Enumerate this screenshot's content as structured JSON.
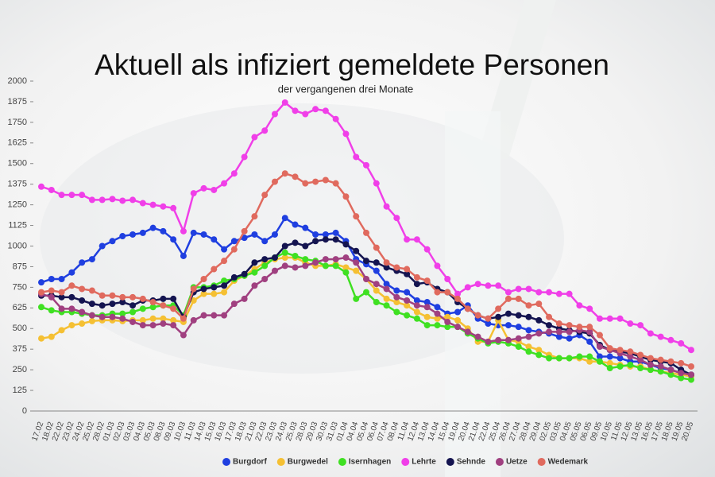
{
  "chart_data": {
    "type": "line",
    "title": "Aktuell als infiziert gemeldete Personen",
    "subtitle": "der vergangenen drei Monate",
    "categories": [
      "17.02",
      "18.02",
      "22.02",
      "23.02",
      "24.02",
      "25.02",
      "28.02",
      "01.03",
      "02.03",
      "03.03",
      "04.03",
      "05.03",
      "08.03",
      "09.03",
      "10.03",
      "11.03",
      "14.03",
      "15.03",
      "16.03",
      "17.03",
      "18.03",
      "21.03",
      "22.03",
      "23.03",
      "24.03",
      "25.03",
      "28.03",
      "29.03",
      "30.03",
      "31.03",
      "01.04",
      "04.04",
      "05.04",
      "06.04",
      "07.04",
      "08.04",
      "11.04",
      "12.04",
      "13.04",
      "14.04",
      "15.04",
      "19.04",
      "20.04",
      "21.04",
      "22.04",
      "25.04",
      "26.04",
      "27.04",
      "28.04",
      "29.04",
      "02.05",
      "03.05",
      "04.05",
      "05.05",
      "06.05",
      "09.05",
      "10.05",
      "11.05",
      "12.05",
      "13.05",
      "16.05",
      "17.05",
      "18.05",
      "19.05",
      "20.05"
    ],
    "series": [
      {
        "name": "Burgdorf",
        "color": "#1f3fe0",
        "values": [
          780,
          800,
          800,
          840,
          900,
          920,
          1000,
          1030,
          1060,
          1070,
          1080,
          1110,
          1090,
          1040,
          940,
          1080,
          1070,
          1040,
          980,
          1030,
          1050,
          1070,
          1030,
          1070,
          1170,
          1130,
          1110,
          1070,
          1070,
          1080,
          1030,
          920,
          890,
          850,
          770,
          730,
          720,
          670,
          660,
          630,
          590,
          600,
          640,
          560,
          530,
          520,
          520,
          510,
          490,
          480,
          470,
          450,
          440,
          460,
          420,
          330,
          330,
          320,
          300,
          300,
          280,
          260,
          250,
          230,
          220
        ]
      },
      {
        "name": "Burgwedel",
        "color": "#f5c033",
        "values": [
          440,
          450,
          490,
          520,
          530,
          545,
          550,
          550,
          545,
          550,
          550,
          560,
          560,
          550,
          540,
          670,
          710,
          710,
          720,
          790,
          820,
          860,
          900,
          920,
          930,
          930,
          900,
          880,
          880,
          890,
          870,
          850,
          800,
          730,
          680,
          660,
          640,
          600,
          570,
          560,
          570,
          550,
          500,
          420,
          420,
          550,
          430,
          420,
          390,
          370,
          340,
          320,
          320,
          320,
          300,
          300,
          290,
          280,
          270,
          270,
          250,
          240,
          230,
          220,
          210
        ]
      },
      {
        "name": "Isernhagen",
        "color": "#3fe022",
        "values": [
          630,
          610,
          600,
          600,
          590,
          580,
          580,
          590,
          590,
          600,
          620,
          630,
          640,
          640,
          580,
          750,
          750,
          760,
          790,
          800,
          820,
          840,
          880,
          930,
          960,
          940,
          920,
          910,
          880,
          880,
          840,
          680,
          720,
          660,
          640,
          600,
          580,
          560,
          520,
          520,
          510,
          510,
          470,
          440,
          410,
          420,
          410,
          390,
          360,
          340,
          320,
          320,
          320,
          330,
          330,
          300,
          260,
          270,
          280,
          260,
          250,
          240,
          220,
          200,
          190
        ]
      },
      {
        "name": "Lehrte",
        "color": "#f03fe8",
        "values": [
          1360,
          1340,
          1310,
          1310,
          1310,
          1280,
          1280,
          1285,
          1275,
          1280,
          1260,
          1250,
          1240,
          1230,
          1090,
          1320,
          1350,
          1340,
          1380,
          1440,
          1540,
          1660,
          1700,
          1800,
          1870,
          1820,
          1800,
          1830,
          1820,
          1770,
          1680,
          1540,
          1490,
          1380,
          1240,
          1170,
          1040,
          1040,
          980,
          880,
          800,
          710,
          750,
          770,
          760,
          760,
          720,
          740,
          740,
          720,
          720,
          710,
          710,
          640,
          620,
          560,
          560,
          560,
          530,
          520,
          470,
          450,
          430,
          410,
          370
        ]
      },
      {
        "name": "Sehnde",
        "color": "#141450",
        "values": [
          700,
          700,
          690,
          690,
          670,
          650,
          640,
          650,
          660,
          640,
          670,
          670,
          680,
          680,
          570,
          720,
          740,
          750,
          760,
          810,
          830,
          900,
          920,
          930,
          1000,
          1020,
          1000,
          1030,
          1040,
          1040,
          1010,
          970,
          910,
          900,
          870,
          850,
          830,
          770,
          780,
          740,
          720,
          660,
          620,
          580,
          560,
          570,
          590,
          580,
          570,
          550,
          520,
          500,
          490,
          480,
          470,
          400,
          370,
          360,
          350,
          330,
          310,
          300,
          290,
          250,
          220
        ]
      },
      {
        "name": "Uetze",
        "color": "#a04080",
        "values": [
          710,
          690,
          620,
          620,
          600,
          580,
          570,
          570,
          560,
          540,
          520,
          520,
          530,
          520,
          460,
          550,
          580,
          580,
          580,
          650,
          680,
          760,
          800,
          850,
          880,
          870,
          880,
          900,
          920,
          920,
          930,
          900,
          800,
          770,
          740,
          690,
          670,
          640,
          630,
          590,
          540,
          510,
          480,
          450,
          420,
          430,
          430,
          440,
          450,
          470,
          480,
          480,
          480,
          490,
          480,
          390,
          370,
          350,
          330,
          310,
          280,
          270,
          250,
          230,
          220
        ]
      },
      {
        "name": "Wedemark",
        "color": "#e06a5e",
        "values": [
          720,
          730,
          720,
          760,
          740,
          730,
          700,
          700,
          690,
          690,
          680,
          660,
          640,
          620,
          560,
          740,
          800,
          860,
          910,
          980,
          1090,
          1180,
          1310,
          1390,
          1440,
          1420,
          1380,
          1390,
          1400,
          1380,
          1300,
          1180,
          1080,
          990,
          900,
          870,
          860,
          810,
          790,
          720,
          720,
          680,
          620,
          580,
          560,
          620,
          680,
          680,
          640,
          650,
          570,
          530,
          520,
          510,
          510,
          460,
          380,
          370,
          360,
          340,
          320,
          310,
          300,
          290,
          270
        ]
      }
    ],
    "ylim": [
      0,
      2000
    ],
    "yticks": [
      0,
      125,
      250,
      375,
      500,
      625,
      750,
      875,
      1000,
      1125,
      1250,
      1375,
      1500,
      1625,
      1750,
      1875,
      2000
    ],
    "grid": false,
    "legend": "bottom"
  }
}
